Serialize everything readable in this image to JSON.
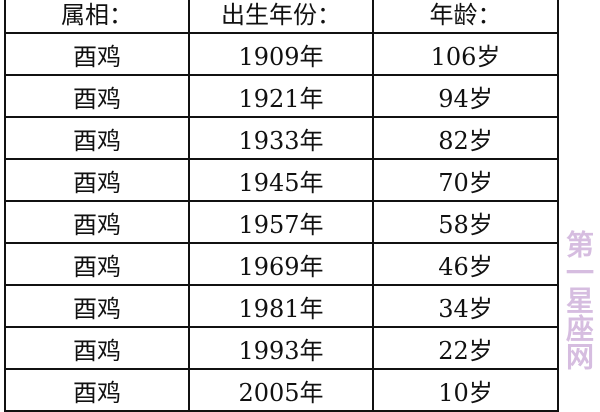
{
  "table": {
    "headers": [
      "属相：",
      "出生年份：",
      "年龄："
    ],
    "rows": [
      [
        "酉鸡",
        "1909年",
        "106岁"
      ],
      [
        "酉鸡",
        "1921年",
        "94岁"
      ],
      [
        "酉鸡",
        "1933年",
        "82岁"
      ],
      [
        "酉鸡",
        "1945年",
        "70岁"
      ],
      [
        "酉鸡",
        "1957年",
        "58岁"
      ],
      [
        "酉鸡",
        "1969年",
        "46岁"
      ],
      [
        "酉鸡",
        "1981年",
        "34岁"
      ],
      [
        "酉鸡",
        "1993年",
        "22岁"
      ],
      [
        "酉鸡",
        "2005年",
        "10岁"
      ]
    ]
  },
  "watermark": "第一星座网"
}
